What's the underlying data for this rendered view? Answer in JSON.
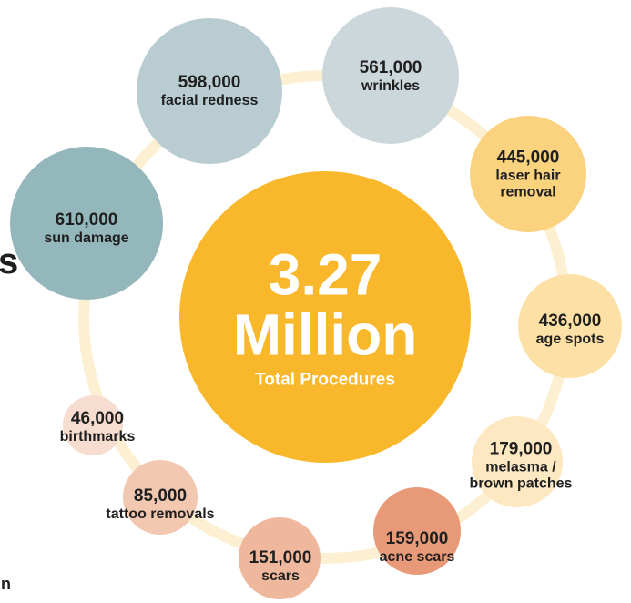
{
  "colors": {
    "ring": "#fdf0d2",
    "center": "#f9b82c",
    "text_dark": "#1f1f1f",
    "text_light": "#ffffff"
  },
  "center": {
    "number": "3.27",
    "unit": "Million",
    "subtitle": "Total Procedures"
  },
  "procedures": [
    {
      "count": "598,000",
      "label": "facial redness",
      "color": "#b9ccd1"
    },
    {
      "count": "561,000",
      "label": "wrinkles",
      "color": "#ccd7dc"
    },
    {
      "count": "445,000",
      "label": "laser hair|removal",
      "color": "#fbd37f"
    },
    {
      "count": "610,000",
      "label": "sun damage",
      "color": "#94b7bb"
    },
    {
      "count": "436,000",
      "label": "age spots",
      "color": "#fde0a5"
    },
    {
      "count": "179,000",
      "label": "melasma /|brown patches",
      "color": "#fde8c2"
    },
    {
      "count": "159,000",
      "label": "acne scars",
      "color": "#e89a78"
    },
    {
      "count": "151,000",
      "label": "scars",
      "color": "#efb89d"
    },
    {
      "count": "85,000",
      "label": "tattoo removals",
      "color": "#f2c8b1"
    },
    {
      "count": "46,000",
      "label": "birthmarks",
      "color": "#f7ddd0"
    }
  ],
  "edge_fragments": {
    "left_letter": "s",
    "bottom_letter": "n"
  }
}
